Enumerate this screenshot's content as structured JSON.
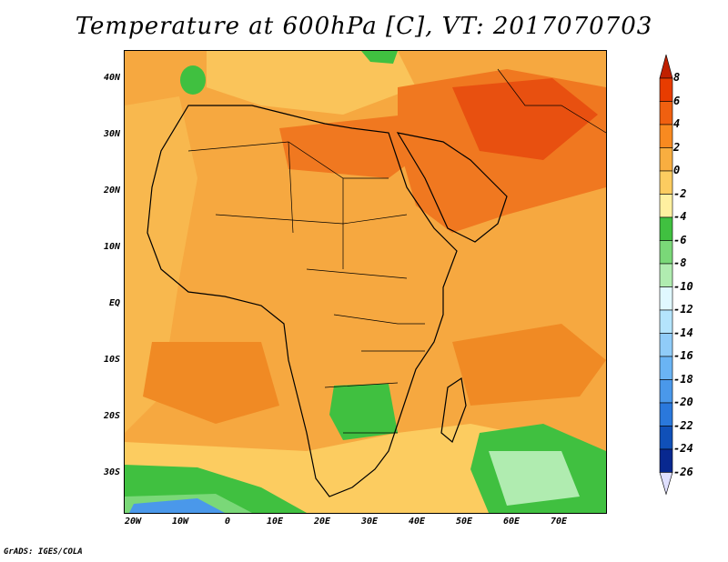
{
  "title": "Temperature at 600hPa [C], VT: 2017070703",
  "credit": "GrADS: IGES/COLA",
  "latitude_labels": [
    "40N",
    "30N",
    "20N",
    "10N",
    "EQ",
    "10S",
    "20S",
    "30S"
  ],
  "longitude_labels": [
    "20W",
    "10W",
    "0",
    "10E",
    "20E",
    "30E",
    "40E",
    "50E",
    "60E",
    "70E"
  ],
  "colorbar": {
    "labels": [
      "8",
      "6",
      "4",
      "2",
      "0",
      "-2",
      "-4",
      "-6",
      "-8",
      "-10",
      "-12",
      "-14",
      "-16",
      "-18",
      "-20",
      "-22",
      "-24",
      "-26"
    ],
    "colors": [
      "#c02000",
      "#e83c00",
      "#f06010",
      "#f88a20",
      "#f8ae40",
      "#fccc60",
      "#fff0a0",
      "#40c040",
      "#7ad878",
      "#b0ecb0",
      "#e0f8ff",
      "#b4e4fc",
      "#90ccf8",
      "#6ab4f4",
      "#4a98ea",
      "#2a78dc",
      "#1050b8",
      "#082890",
      "#081060"
    ]
  }
}
